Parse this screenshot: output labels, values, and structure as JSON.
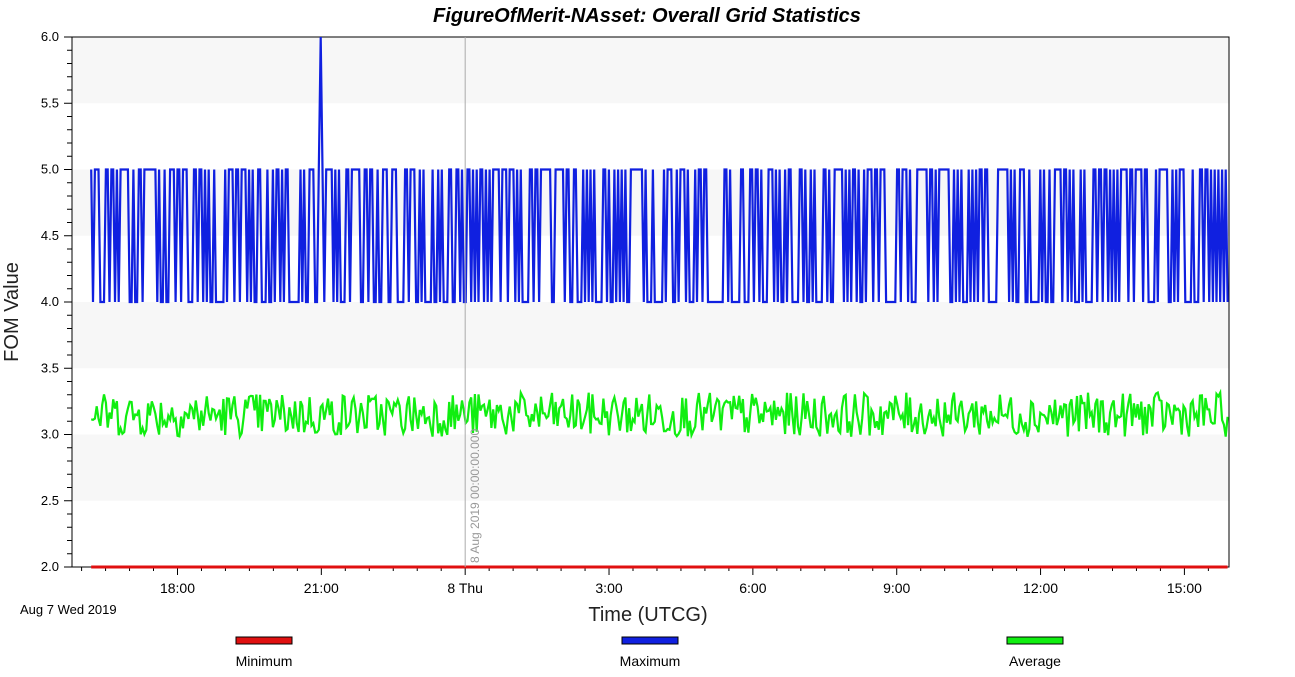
{
  "chart_data": {
    "type": "line",
    "title": "FigureOfMerit-NAsset:  Overall Grid Statistics",
    "xlabel": "Time (UTCG)",
    "ylabel": "FOM Value",
    "ylim": [
      2.0,
      6.0
    ],
    "y_ticks": [
      "2.0",
      "2.5",
      "3.0",
      "3.5",
      "4.0",
      "4.5",
      "5.0",
      "5.5",
      "6.0"
    ],
    "x_range_hours": [
      -8.2,
      15.93
    ],
    "x_ticks": [
      {
        "hour": -6,
        "label": "18:00"
      },
      {
        "hour": -3,
        "label": "21:00"
      },
      {
        "hour": 0,
        "label": "8 Thu"
      },
      {
        "hour": 3,
        "label": "3:00"
      },
      {
        "hour": 6,
        "label": "6:00"
      },
      {
        "hour": 9,
        "label": "9:00"
      },
      {
        "hour": 12,
        "label": "12:00"
      },
      {
        "hour": 15,
        "label": "15:00"
      }
    ],
    "start_date_label": "Aug 7 Wed 2019",
    "marker_line": {
      "hour": 0,
      "label": "8 Aug 2019 00:00:00.000"
    },
    "grid": "alternating horizontal bands",
    "legend_position": "bottom",
    "series": [
      {
        "name": "Minimum",
        "color": "#e01010",
        "constant": 2.0
      },
      {
        "name": "Maximum",
        "color": "#1020e0",
        "low": 4.0,
        "high": 5.0,
        "spike": {
          "hour": -3.0,
          "value": 6.0
        }
      },
      {
        "name": "Average",
        "color": "#10ee10",
        "mean": 3.15,
        "range": [
          2.95,
          3.32
        ]
      }
    ]
  }
}
